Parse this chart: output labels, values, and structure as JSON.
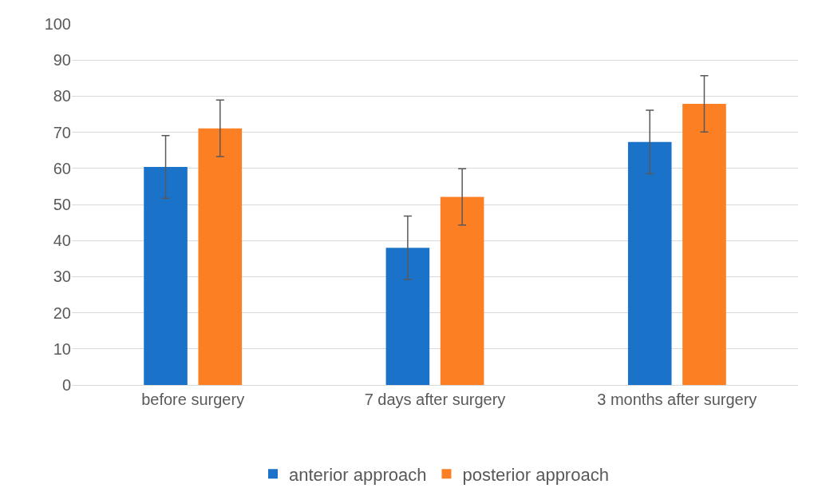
{
  "chart_data": {
    "type": "bar",
    "categories": [
      "before surgery",
      "7 days after surgery",
      "3 months after surgery"
    ],
    "series": [
      {
        "name": "anterior approach",
        "color": "#1a73c9",
        "values": [
          60.4,
          38.0,
          67.3
        ],
        "errors": [
          8.7,
          8.8,
          8.8
        ]
      },
      {
        "name": "posterior approach",
        "color": "#fd7f24",
        "values": [
          71.1,
          52.1,
          77.9
        ],
        "errors": [
          7.8,
          7.8,
          7.8
        ]
      }
    ],
    "ylim": [
      0,
      100
    ],
    "yticks": [
      0,
      10,
      20,
      30,
      40,
      50,
      60,
      70,
      80,
      90,
      100
    ],
    "grid": "y",
    "legend": "bottom"
  }
}
